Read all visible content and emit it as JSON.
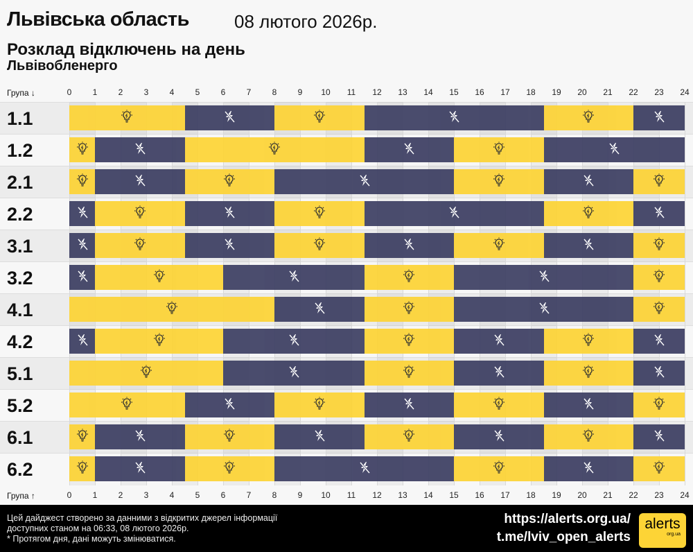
{
  "header": {
    "region": "Львівська область",
    "date": "08 лютого 2026р.",
    "subtitle": "Розклад відключень на день",
    "provider": "Львівобленерго"
  },
  "axis": {
    "top_label": "Група ↓",
    "bottom_label": "Група ↑",
    "hours": [
      "0",
      "1",
      "2",
      "3",
      "4",
      "5",
      "6",
      "7",
      "8",
      "9",
      "10",
      "11",
      "12",
      "13",
      "14",
      "15",
      "16",
      "17",
      "18",
      "19",
      "20",
      "21",
      "22",
      "23",
      "24"
    ]
  },
  "colors": {
    "power_on": "#fdd436",
    "power_off": "#3d3f63"
  },
  "icons": {
    "power_on": "lightbulb-icon",
    "power_off": "no-power-icon"
  },
  "groups": [
    {
      "name": "1.1",
      "segments": [
        [
          "on",
          0,
          4.5
        ],
        [
          "off",
          4.5,
          8
        ],
        [
          "on",
          8,
          11.5
        ],
        [
          "off",
          11.5,
          18.5
        ],
        [
          "on",
          18.5,
          22
        ],
        [
          "off",
          22,
          24
        ]
      ]
    },
    {
      "name": "1.2",
      "segments": [
        [
          "on",
          0,
          1
        ],
        [
          "off",
          1,
          4.5
        ],
        [
          "on",
          4.5,
          11.5
        ],
        [
          "off",
          11.5,
          15
        ],
        [
          "on",
          15,
          18.5
        ],
        [
          "off",
          18.5,
          24
        ]
      ]
    },
    {
      "name": "2.1",
      "segments": [
        [
          "on",
          0,
          1
        ],
        [
          "off",
          1,
          4.5
        ],
        [
          "on",
          4.5,
          8
        ],
        [
          "off",
          8,
          15
        ],
        [
          "on",
          15,
          18.5
        ],
        [
          "off",
          18.5,
          22
        ],
        [
          "on",
          22,
          24
        ]
      ]
    },
    {
      "name": "2.2",
      "segments": [
        [
          "off",
          0,
          1
        ],
        [
          "on",
          1,
          4.5
        ],
        [
          "off",
          4.5,
          8
        ],
        [
          "on",
          8,
          11.5
        ],
        [
          "off",
          11.5,
          18.5
        ],
        [
          "on",
          18.5,
          22
        ],
        [
          "off",
          22,
          24
        ]
      ]
    },
    {
      "name": "3.1",
      "segments": [
        [
          "off",
          0,
          1
        ],
        [
          "on",
          1,
          4.5
        ],
        [
          "off",
          4.5,
          8
        ],
        [
          "on",
          8,
          11.5
        ],
        [
          "off",
          11.5,
          15
        ],
        [
          "on",
          15,
          18.5
        ],
        [
          "off",
          18.5,
          22
        ],
        [
          "on",
          22,
          24
        ]
      ]
    },
    {
      "name": "3.2",
      "segments": [
        [
          "off",
          0,
          1
        ],
        [
          "on",
          1,
          6
        ],
        [
          "off",
          6,
          11.5
        ],
        [
          "on",
          11.5,
          15
        ],
        [
          "off",
          15,
          22
        ],
        [
          "on",
          22,
          24
        ]
      ]
    },
    {
      "name": "4.1",
      "segments": [
        [
          "on",
          0,
          8
        ],
        [
          "off",
          8,
          11.5
        ],
        [
          "on",
          11.5,
          15
        ],
        [
          "off",
          15,
          22
        ],
        [
          "on",
          22,
          24
        ]
      ]
    },
    {
      "name": "4.2",
      "segments": [
        [
          "off",
          0,
          1
        ],
        [
          "on",
          1,
          6
        ],
        [
          "off",
          6,
          11.5
        ],
        [
          "on",
          11.5,
          15
        ],
        [
          "off",
          15,
          18.5
        ],
        [
          "on",
          18.5,
          22
        ],
        [
          "off",
          22,
          24
        ]
      ]
    },
    {
      "name": "5.1",
      "segments": [
        [
          "on",
          0,
          6
        ],
        [
          "off",
          6,
          11.5
        ],
        [
          "on",
          11.5,
          15
        ],
        [
          "off",
          15,
          18.5
        ],
        [
          "on",
          18.5,
          22
        ],
        [
          "off",
          22,
          24
        ]
      ]
    },
    {
      "name": "5.2",
      "segments": [
        [
          "on",
          0,
          4.5
        ],
        [
          "off",
          4.5,
          8
        ],
        [
          "on",
          8,
          11.5
        ],
        [
          "off",
          11.5,
          15
        ],
        [
          "on",
          15,
          18.5
        ],
        [
          "off",
          18.5,
          22
        ],
        [
          "on",
          22,
          24
        ]
      ]
    },
    {
      "name": "6.1",
      "segments": [
        [
          "on",
          0,
          1
        ],
        [
          "off",
          1,
          4.5
        ],
        [
          "on",
          4.5,
          8
        ],
        [
          "off",
          8,
          11.5
        ],
        [
          "on",
          11.5,
          15
        ],
        [
          "off",
          15,
          18.5
        ],
        [
          "on",
          18.5,
          22
        ],
        [
          "off",
          22,
          24
        ]
      ]
    },
    {
      "name": "6.2",
      "segments": [
        [
          "on",
          0,
          1
        ],
        [
          "off",
          1,
          4.5
        ],
        [
          "on",
          4.5,
          8
        ],
        [
          "off",
          8,
          15
        ],
        [
          "on",
          15,
          18.5
        ],
        [
          "off",
          18.5,
          22
        ],
        [
          "on",
          22,
          24
        ]
      ]
    }
  ],
  "footer": {
    "note_line1": "Цей дайджест створено за данними з відкритих джерел інформації",
    "note_line2": "доступних станом на 06:33, 08 лютого 2026р.",
    "note_line3": "* Протягом дня, дані можуть змінюватися.",
    "link1": "https://alerts.org.ua/",
    "link2": "t.me/lviv_open_alerts",
    "logo_text": "alerts",
    "logo_sub": "org.ua"
  }
}
